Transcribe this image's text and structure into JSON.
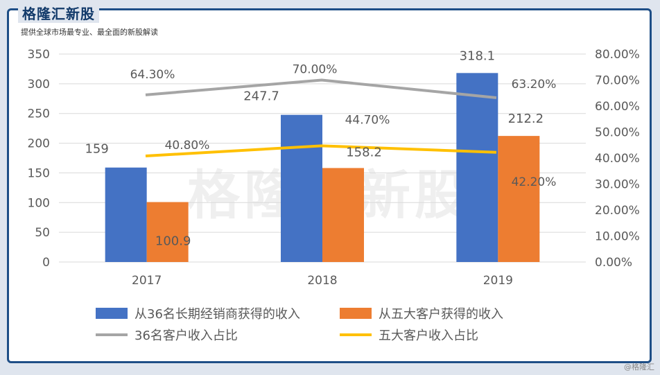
{
  "header": {
    "brand": "格隆汇新股",
    "tagline": "提供全球市场最专业、最全面的新股解读",
    "watermark": "格隆汇新股",
    "corner_mark": "@格隆汇"
  },
  "chart_data": {
    "type": "bar",
    "categories": [
      "2017",
      "2018",
      "2019"
    ],
    "left_axis": {
      "min": 0,
      "max": 350,
      "step": 50,
      "ticks": [
        "0",
        "50",
        "100",
        "150",
        "200",
        "250",
        "300",
        "350"
      ]
    },
    "right_axis": {
      "min": 0,
      "max": 80,
      "step": 10,
      "ticks": [
        "0.00%",
        "10.00%",
        "20.00%",
        "30.00%",
        "40.00%",
        "50.00%",
        "60.00%",
        "70.00%",
        "80.00%"
      ]
    },
    "grid": true,
    "legend_position": "bottom",
    "series": [
      {
        "name": "从36名长期经销商获得的收入",
        "kind": "bar",
        "axis": "left",
        "color": "#4472c4",
        "values": [
          159,
          247.7,
          318.1
        ],
        "labels": [
          "159",
          "247.7",
          "318.1"
        ]
      },
      {
        "name": "从五大客户获得的收入",
        "kind": "bar",
        "axis": "left",
        "color": "#ed7d31",
        "values": [
          100.9,
          158.2,
          212.2
        ],
        "labels": [
          "100.9",
          "158.2",
          "212.2"
        ]
      },
      {
        "name": "36名客户收入占比",
        "kind": "line",
        "axis": "right",
        "color": "#a5a5a5",
        "values": [
          64.3,
          70.0,
          63.2
        ],
        "labels": [
          "64.30%",
          "70.00%",
          "63.20%"
        ]
      },
      {
        "name": "五大客户收入占比",
        "kind": "line",
        "axis": "right",
        "color": "#ffc000",
        "values": [
          40.8,
          44.7,
          42.2
        ],
        "labels": [
          "40.80%",
          "44.70%",
          "42.20%"
        ]
      }
    ]
  }
}
